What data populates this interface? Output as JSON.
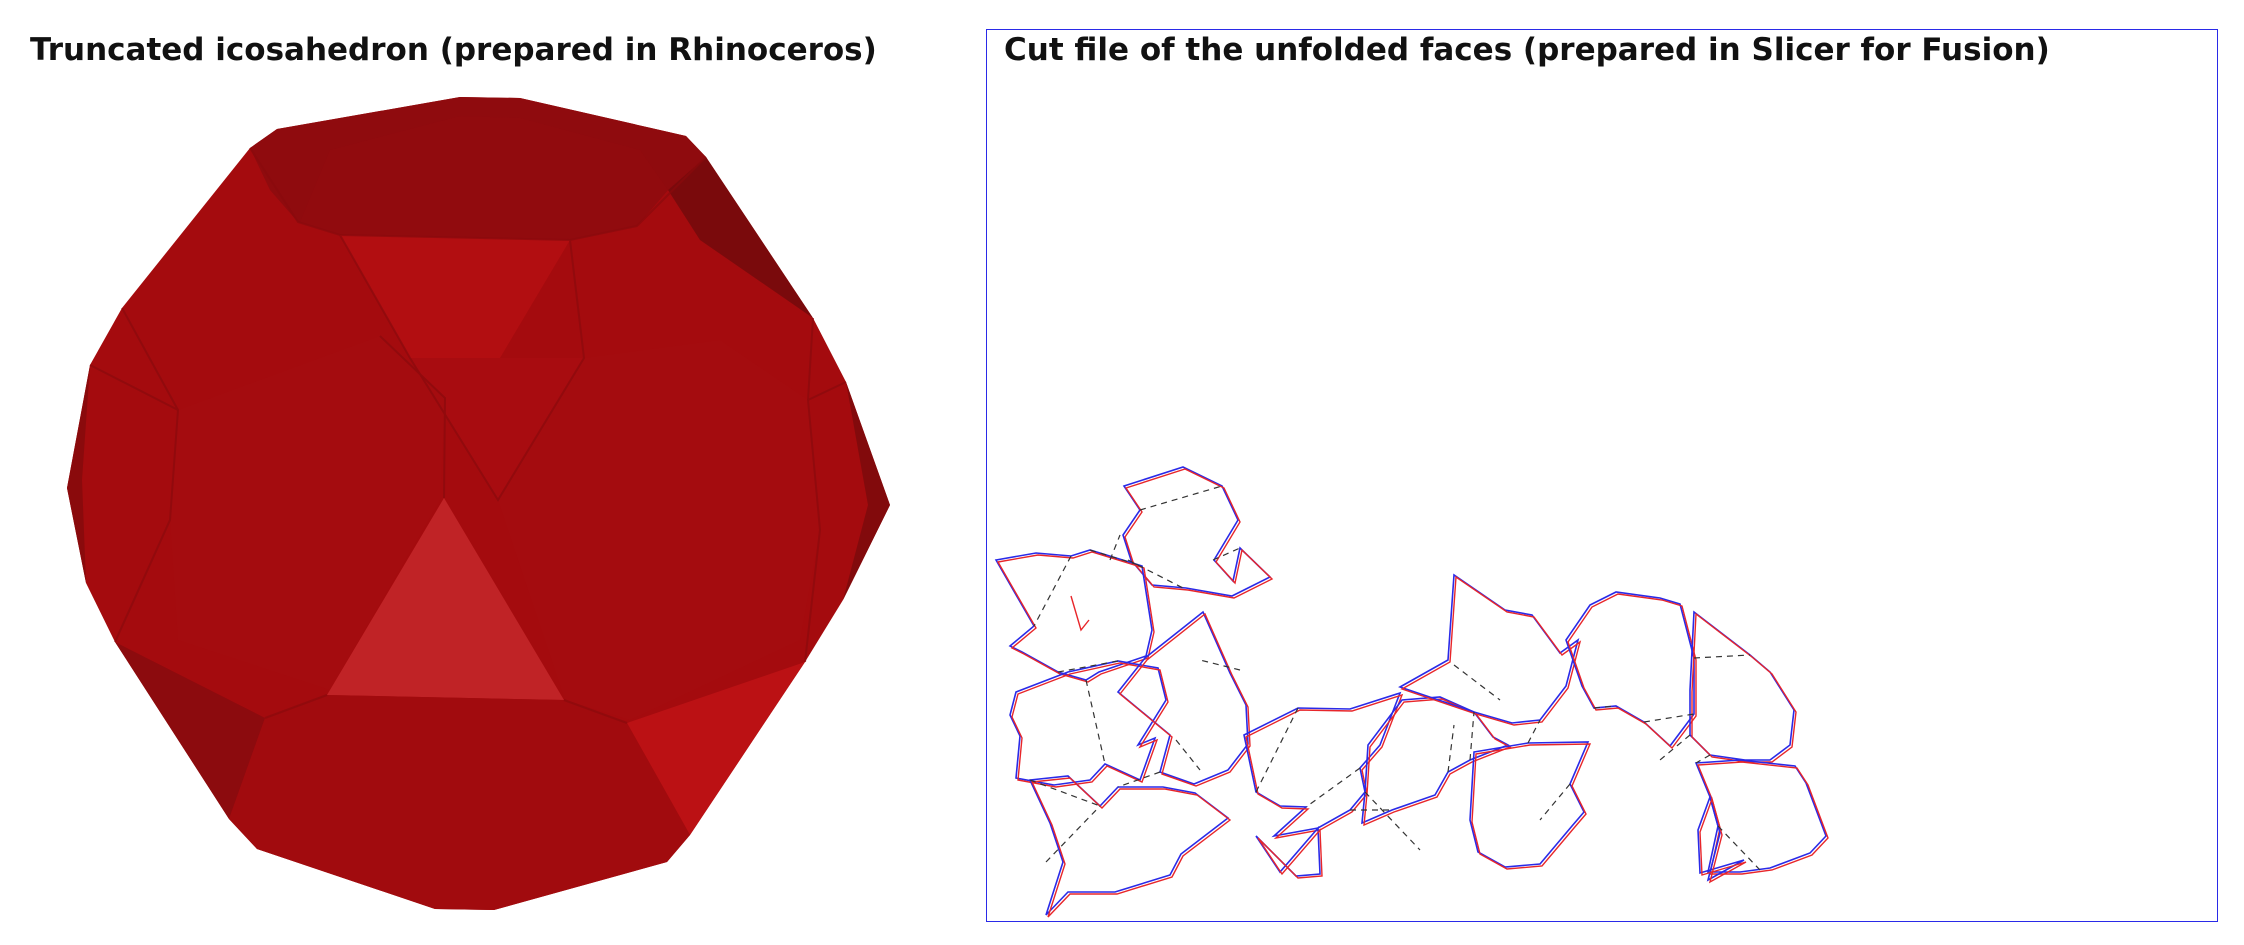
{
  "left_panel": {
    "title": "Truncated icosahedron (prepared in Rhinoceros)",
    "colors": {
      "base": "#a40b0e",
      "dark": "#7d0a0c",
      "mid": "#930c0f",
      "light": "#c42427",
      "highlight": "#ba1114"
    }
  },
  "right_panel": {
    "title": "Cut file of the unfolded faces (prepared in Slicer for Fusion)",
    "colors": {
      "frame": "#2a2ae8",
      "cut_line": "#2a2ae8",
      "offset_line": "#e8262a",
      "fold_line": "#333333"
    }
  }
}
